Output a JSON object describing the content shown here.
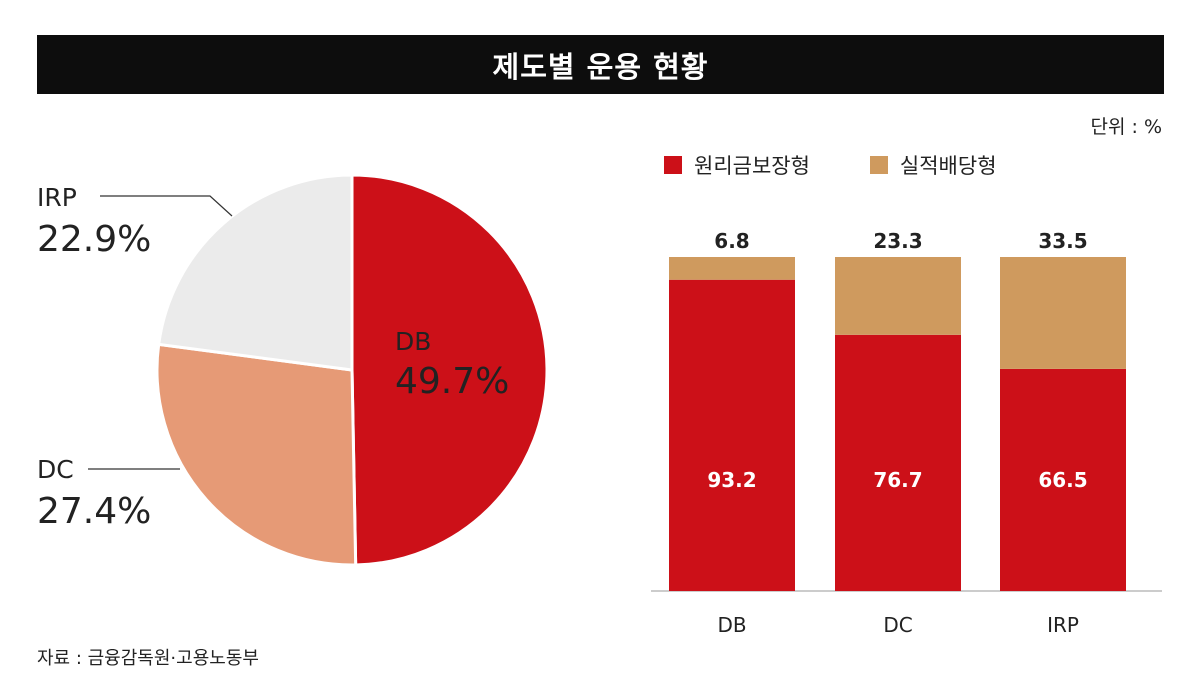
{
  "title": "제도별 운용 현황",
  "unit": "단위 : %",
  "source": "자료 : 금융감독원·고용노동부",
  "colors": {
    "principal": "#cc1018",
    "performance": "#cf9a5e",
    "pie_DB": "#cc1018",
    "pie_DC": "#e69a76",
    "pie_IRP": "#ebebeb"
  },
  "chart_data": [
    {
      "type": "pie",
      "slices": [
        {
          "label": "DB",
          "value": 49.7,
          "display": "49.7%"
        },
        {
          "label": "DC",
          "value": 27.4,
          "display": "27.4%"
        },
        {
          "label": "IRP",
          "value": 22.9,
          "display": "22.9%"
        }
      ]
    },
    {
      "type": "bar",
      "stacked": true,
      "categories": [
        "DB",
        "DC",
        "IRP"
      ],
      "series": [
        {
          "name": "원리금보장형",
          "values": [
            93.2,
            76.7,
            66.5
          ],
          "labels": [
            "93.2",
            "76.7",
            "66.5"
          ]
        },
        {
          "name": "실적배당형",
          "values": [
            6.8,
            23.3,
            33.5
          ],
          "labels": [
            "6.8",
            "23.3",
            "33.5"
          ]
        }
      ],
      "ylim": [
        0,
        100
      ],
      "legend": "top-left"
    }
  ]
}
